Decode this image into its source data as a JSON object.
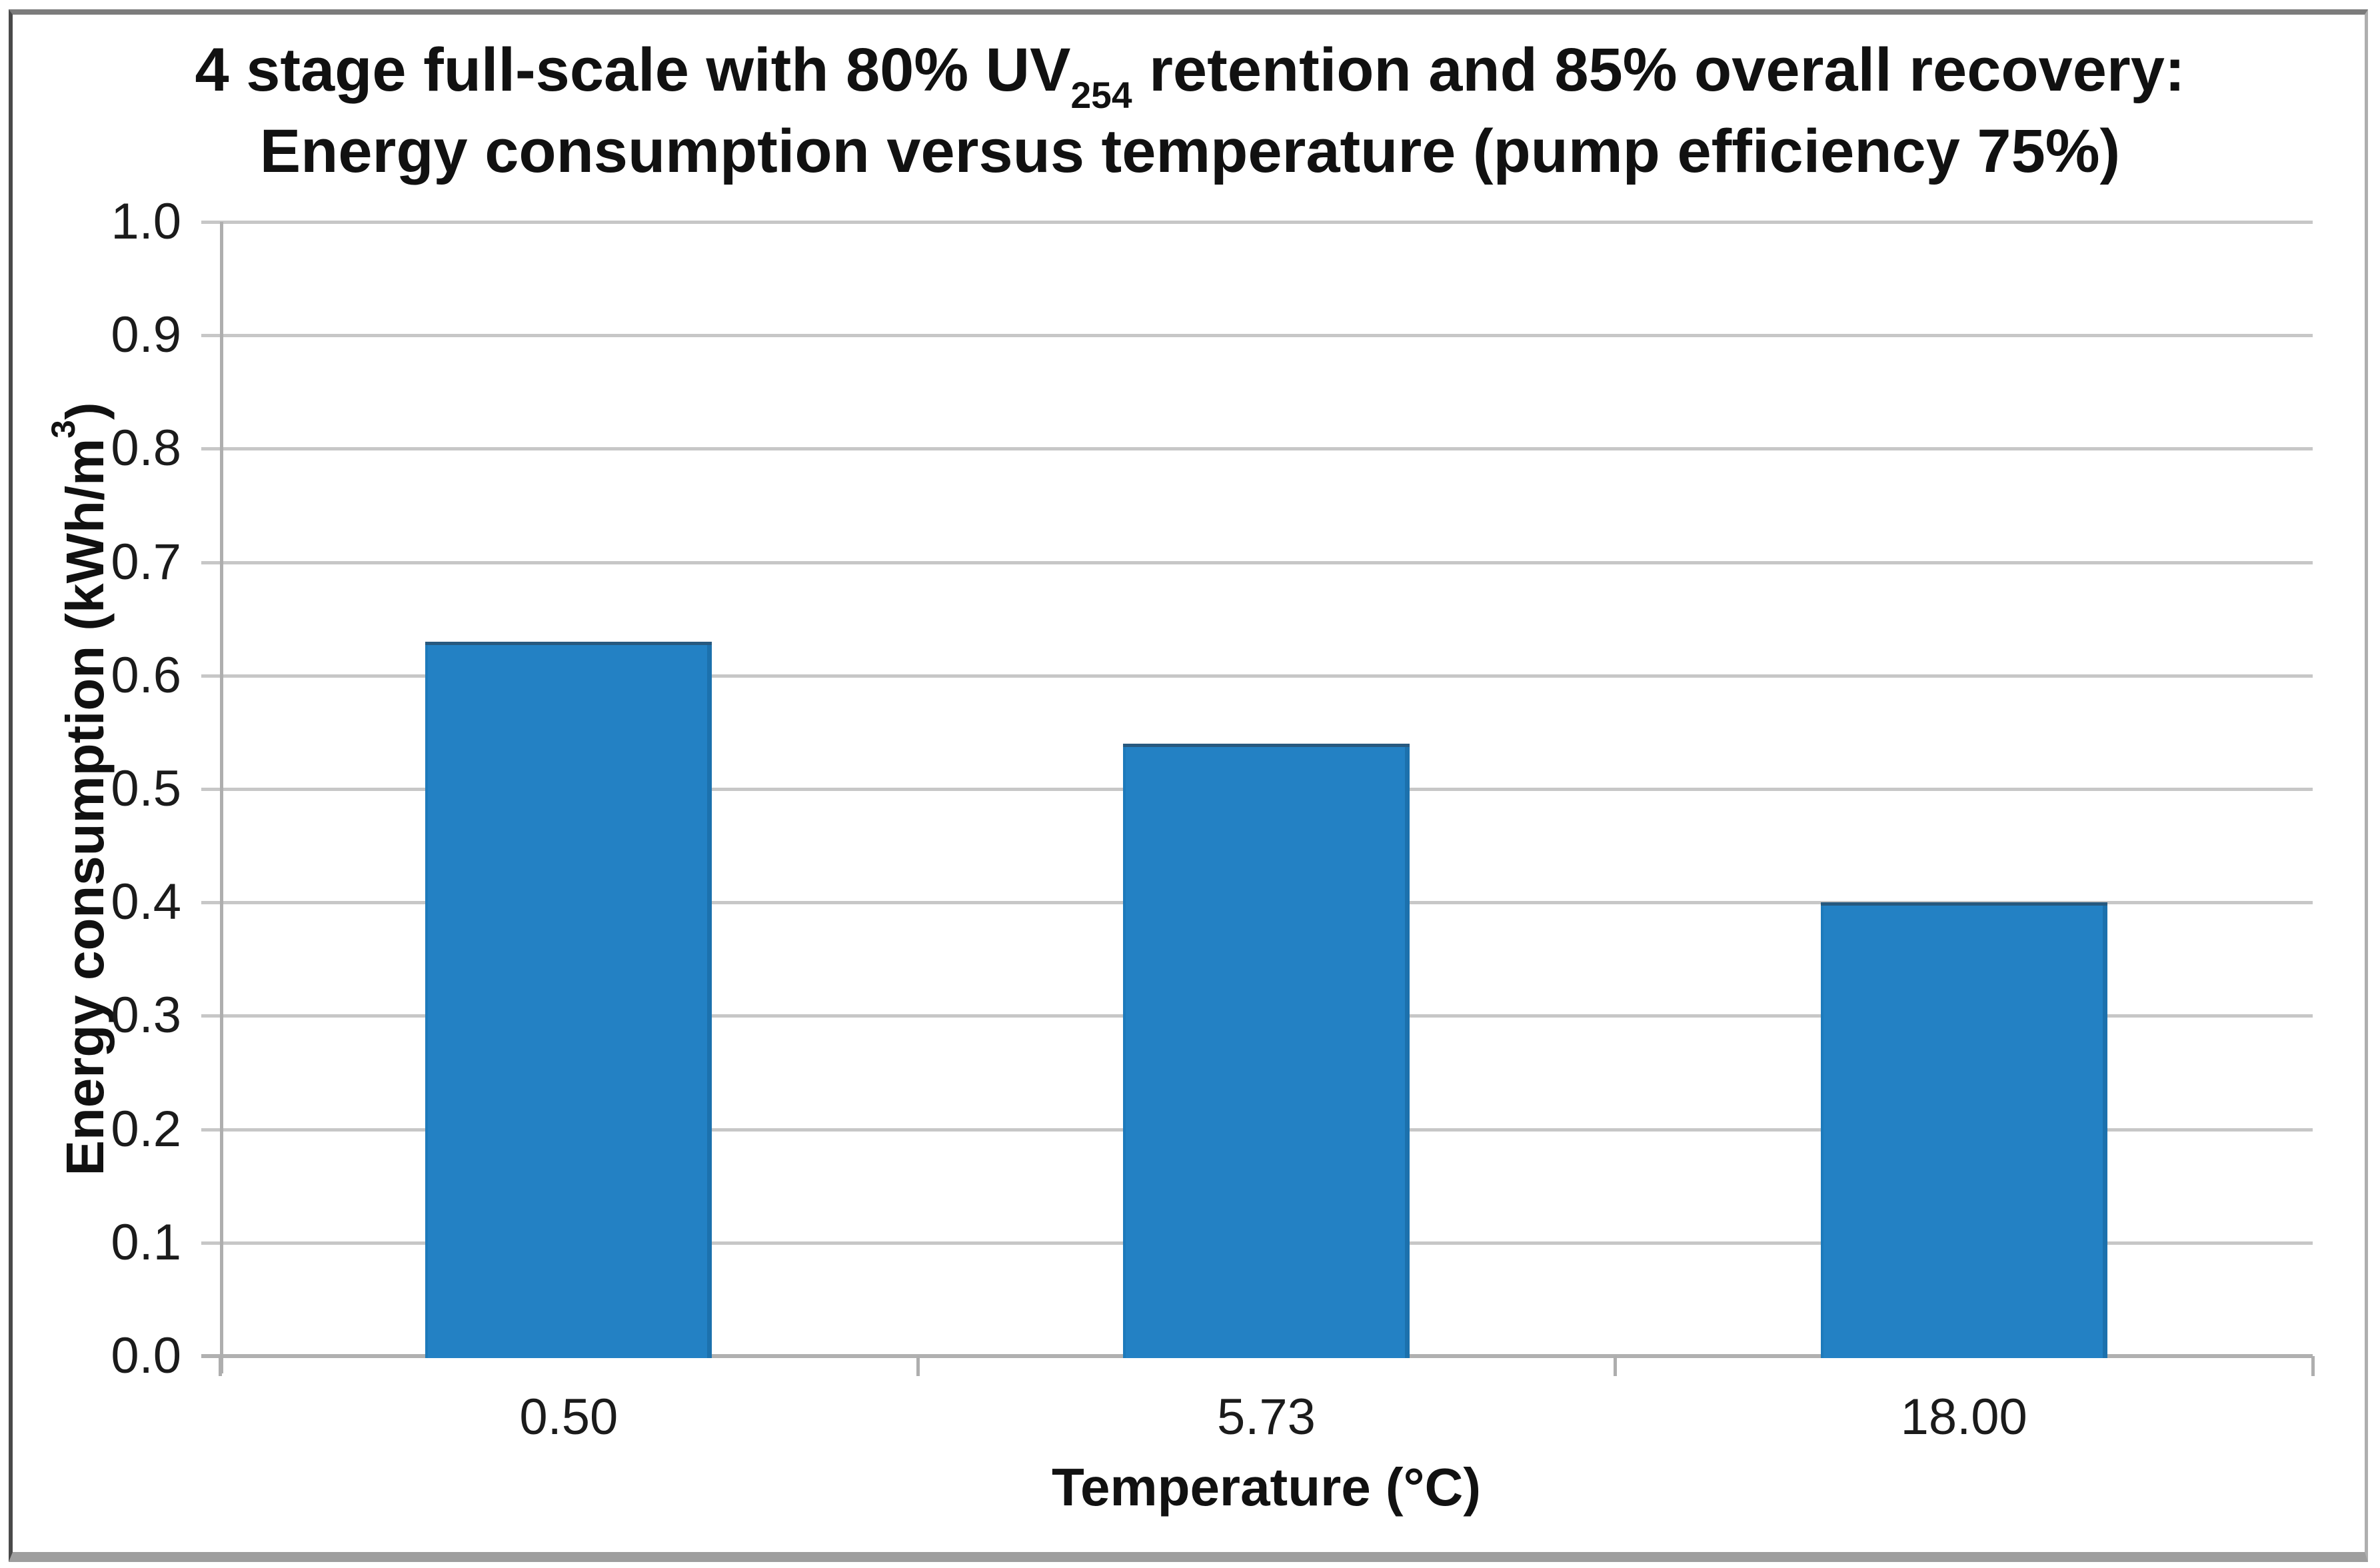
{
  "chart_data": {
    "type": "bar",
    "title": {
      "line1_part1": "4 stage full-scale with 80% UV",
      "line1_subscript": "254",
      "line1_part2": " retention and 85% overall recovery:",
      "line2": "Energy consumption versus temperature (pump efficiency 75%)"
    },
    "ylabel": {
      "part1": "Energy consumption (kWh/m",
      "sup": "3",
      "part2": ")"
    },
    "xlabel": "Temperature (°C)",
    "categories": [
      "0.50",
      "5.73",
      "18.00"
    ],
    "values": [
      0.63,
      0.54,
      0.4
    ],
    "series_name": "Energy consumption",
    "ylim": [
      0.0,
      1.0
    ],
    "ytick_labels": [
      "0.0",
      "0.1",
      "0.2",
      "0.3",
      "0.4",
      "0.5",
      "0.6",
      "0.7",
      "0.8",
      "0.9",
      "1.0"
    ],
    "grid": true,
    "legend": false,
    "colors": {
      "bar_fill": "#2381c4",
      "bar_top_edge": "#27597f",
      "gridline": "#c7c7c7",
      "axis_line": "#aeaeae",
      "text": "#161616",
      "frame_top": "#7c7c7c",
      "frame_bottom": "#9e9e9e"
    }
  }
}
